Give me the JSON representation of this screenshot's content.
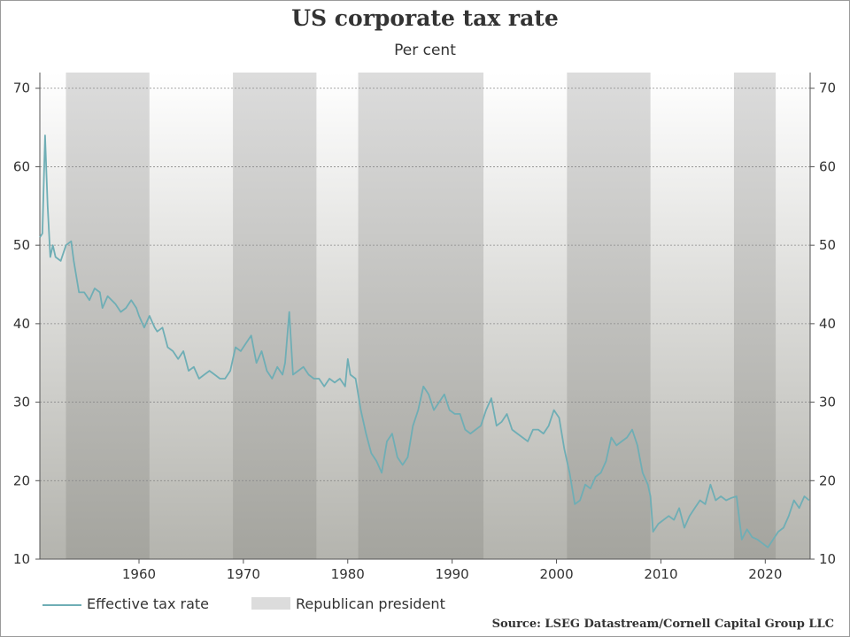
{
  "chart_data": {
    "type": "line",
    "title": "US corporate tax rate",
    "subtitle": "Per cent",
    "source": "Source: LSEG Datastream/Cornell Capital Group LLC",
    "xlabel": "",
    "ylabel": "",
    "xlim": [
      1950.5,
      2024.3
    ],
    "ylim": [
      10,
      72
    ],
    "x_ticks": [
      1960,
      1970,
      1980,
      1990,
      2000,
      2010,
      2020
    ],
    "y_ticks": [
      10,
      20,
      30,
      40,
      50,
      60,
      70
    ],
    "grid": true,
    "legend_position": "bottom-left",
    "shaded_periods": {
      "name": "Republican president",
      "color": "#dcdcdc",
      "periods": [
        [
          1953,
          1961
        ],
        [
          1969,
          1977
        ],
        [
          1981,
          1993
        ],
        [
          2001,
          2009
        ],
        [
          2017,
          2021
        ]
      ]
    },
    "series": [
      {
        "name": "Effective tax rate",
        "color": "#6faeb5",
        "x": [
          1950.5,
          1950.75,
          1951.0,
          1951.25,
          1951.5,
          1951.75,
          1952.0,
          1952.5,
          1953.0,
          1953.5,
          1953.75,
          1954.25,
          1954.75,
          1955.25,
          1955.75,
          1956.25,
          1956.5,
          1957.0,
          1957.75,
          1958.25,
          1958.75,
          1959.25,
          1959.75,
          1960.0,
          1960.5,
          1961.0,
          1961.5,
          1961.75,
          1962.25,
          1962.75,
          1963.25,
          1963.75,
          1964.25,
          1964.75,
          1965.25,
          1965.75,
          1966.25,
          1966.75,
          1967.25,
          1967.75,
          1968.25,
          1968.75,
          1969.25,
          1969.75,
          1970.25,
          1970.75,
          1971.25,
          1971.75,
          1972.25,
          1972.75,
          1973.25,
          1973.75,
          1974.0,
          1974.4,
          1974.75,
          1975.25,
          1975.75,
          1976.25,
          1976.75,
          1977.25,
          1977.75,
          1978.25,
          1978.75,
          1979.25,
          1979.75,
          1980.0,
          1980.25,
          1980.75,
          1981.25,
          1981.75,
          1982.25,
          1982.75,
          1983.25,
          1983.75,
          1984.25,
          1984.75,
          1985.25,
          1985.75,
          1986.25,
          1986.75,
          1987.25,
          1987.75,
          1988.25,
          1988.75,
          1989.25,
          1989.75,
          1990.25,
          1990.75,
          1991.25,
          1991.75,
          1992.25,
          1992.75,
          1993.25,
          1993.75,
          1994.25,
          1994.75,
          1995.25,
          1995.75,
          1996.25,
          1996.75,
          1997.25,
          1997.75,
          1998.25,
          1998.75,
          1999.25,
          1999.75,
          2000.25,
          2000.75,
          2001.25,
          2001.75,
          2002.25,
          2002.75,
          2003.25,
          2003.75,
          2004.25,
          2004.75,
          2005.25,
          2005.75,
          2006.25,
          2006.75,
          2007.25,
          2007.75,
          2008.25,
          2008.75,
          2009.0,
          2009.25,
          2009.75,
          2010.25,
          2010.75,
          2011.25,
          2011.75,
          2012.25,
          2012.75,
          2013.25,
          2013.75,
          2014.25,
          2014.75,
          2015.25,
          2015.75,
          2016.25,
          2016.75,
          2017.25,
          2017.75,
          2018.25,
          2018.75,
          2019.25,
          2019.75,
          2020.25,
          2020.75,
          2021.25,
          2021.75,
          2022.25,
          2022.75,
          2023.25,
          2023.75,
          2024.2
        ],
        "values": [
          51.0,
          51.5,
          64.0,
          55.0,
          48.5,
          50.0,
          48.5,
          48.0,
          50.0,
          50.5,
          48.0,
          44.0,
          44.0,
          43.0,
          44.5,
          44.0,
          42.0,
          43.5,
          42.5,
          41.5,
          42.0,
          43.0,
          42.0,
          41.0,
          39.5,
          41.0,
          39.5,
          39.0,
          39.5,
          37.0,
          36.5,
          35.5,
          36.5,
          34.0,
          34.5,
          33.0,
          33.5,
          34.0,
          33.5,
          33.0,
          33.0,
          34.0,
          37.0,
          36.5,
          37.5,
          38.5,
          35.0,
          36.5,
          34.0,
          33.0,
          34.5,
          33.5,
          35.0,
          41.5,
          33.5,
          34.0,
          34.5,
          33.5,
          33.0,
          33.0,
          32.0,
          33.0,
          32.5,
          33.0,
          32.0,
          35.5,
          33.5,
          33.0,
          29.0,
          26.0,
          23.5,
          22.5,
          21.0,
          25.0,
          26.0,
          23.0,
          22.0,
          23.0,
          27.0,
          29.0,
          32.0,
          31.0,
          29.0,
          30.0,
          31.0,
          29.0,
          28.5,
          28.5,
          26.5,
          26.0,
          26.5,
          27.0,
          29.0,
          30.5,
          27.0,
          27.5,
          28.5,
          26.5,
          26.0,
          25.5,
          25.0,
          26.5,
          26.5,
          26.0,
          27.0,
          29.0,
          28.0,
          24.0,
          21.0,
          17.0,
          17.5,
          19.5,
          19.0,
          20.5,
          21.0,
          22.5,
          25.5,
          24.5,
          25.0,
          25.5,
          26.5,
          24.5,
          21.0,
          19.5,
          18.0,
          13.5,
          14.5,
          15.0,
          15.5,
          15.0,
          16.5,
          14.0,
          15.5,
          16.5,
          17.5,
          17.0,
          19.5,
          17.5,
          18.0,
          17.5,
          17.8,
          18.0,
          12.5,
          13.8,
          12.8,
          12.5,
          12.0,
          11.5,
          12.5,
          13.5,
          14.0,
          15.5,
          17.5,
          16.5,
          18.0,
          17.5
        ]
      }
    ]
  }
}
